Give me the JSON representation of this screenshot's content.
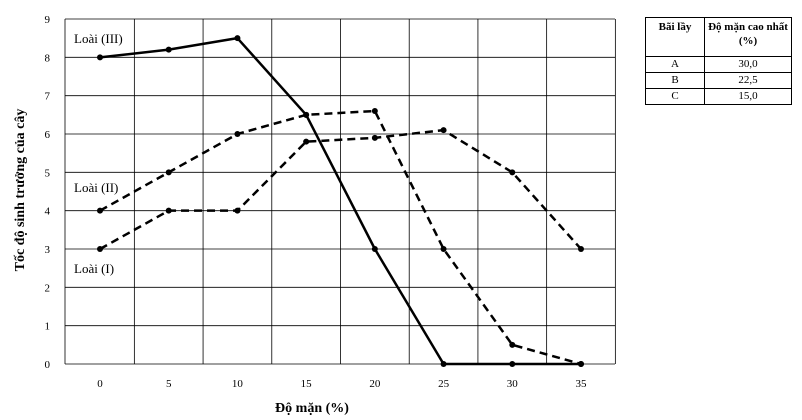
{
  "chart_data": {
    "type": "line",
    "xlabel": "Độ mặn (%)",
    "ylabel": "Tốc độ sinh trưởng của cây",
    "x": [
      0,
      5,
      10,
      15,
      20,
      25,
      30,
      35
    ],
    "x_tick_labels": [
      "0",
      "5",
      "10",
      "15",
      "20",
      "25",
      "30",
      "35"
    ],
    "y_tick_labels": [
      "0",
      "1",
      "2",
      "3",
      "4",
      "5",
      "6",
      "7",
      "8",
      "9"
    ],
    "xlim": [
      0,
      35
    ],
    "ylim": [
      0,
      9
    ],
    "grid": true,
    "series": [
      {
        "name": "Loài (III)",
        "style": "solid",
        "x": [
          0,
          5,
          10,
          15,
          20,
          25,
          30,
          35
        ],
        "values": [
          8,
          8.2,
          8.5,
          6.5,
          3,
          0,
          0,
          0
        ]
      },
      {
        "name": "Loài (II)",
        "style": "dashed",
        "x": [
          0,
          5,
          10,
          15,
          20,
          25,
          30,
          35
        ],
        "values": [
          4,
          5,
          6,
          6.5,
          6.6,
          3,
          0.5,
          0
        ]
      },
      {
        "name": "Loài (I)",
        "style": "dashed",
        "x": [
          0,
          5,
          10,
          15,
          20,
          25,
          30,
          35
        ],
        "values": [
          3,
          4,
          4,
          5.8,
          5.9,
          6.1,
          5,
          3
        ]
      }
    ]
  },
  "salinity_table": {
    "headers": [
      "Bãi lầy",
      "Độ mặn cao nhất (%)"
    ],
    "rows": [
      {
        "site": "A",
        "max_salinity": "30,0"
      },
      {
        "site": "B",
        "max_salinity": "22,5"
      },
      {
        "site": "C",
        "max_salinity": "15,0"
      }
    ]
  }
}
